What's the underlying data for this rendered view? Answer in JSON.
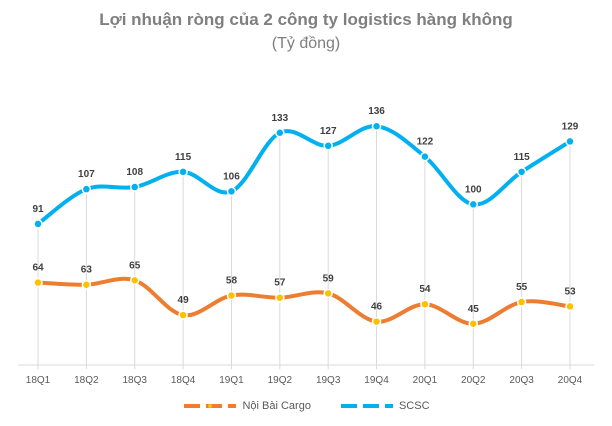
{
  "chart_data": {
    "type": "line",
    "title": "Lợi nhuận ròng của 2 công ty logistics hàng không",
    "subtitle": "(Tỷ đồng)",
    "categories": [
      "18Q1",
      "18Q2",
      "18Q3",
      "18Q4",
      "19Q1",
      "19Q2",
      "19Q3",
      "19Q4",
      "20Q1",
      "20Q2",
      "20Q3",
      "20Q4"
    ],
    "series": [
      {
        "name": "Nội Bài Cargo",
        "values": [
          64,
          63,
          65,
          49,
          58,
          57,
          59,
          46,
          54,
          45,
          55,
          53
        ],
        "color": "#ed7d31",
        "marker_color": "#ffc000"
      },
      {
        "name": "SCSC",
        "values": [
          91,
          107,
          108,
          115,
          106,
          133,
          127,
          136,
          122,
          100,
          115,
          129
        ],
        "color": "#00b0f0",
        "marker_color": "#00b0f0"
      }
    ],
    "ylim": [
      26,
      155
    ],
    "smooth": true,
    "data_labels": true,
    "y_axis_visible": false,
    "grid": "vertical drop lines",
    "legend_position": "bottom"
  }
}
